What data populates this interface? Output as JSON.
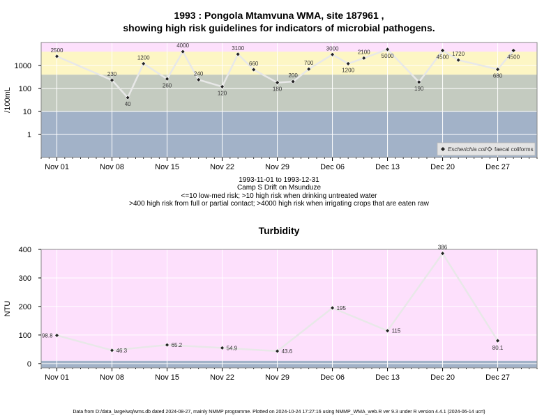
{
  "chart_data": [
    {
      "type": "line",
      "title_line1": "1993 : Pongola Mtamvuna WMA, site 187961 ,",
      "title_line2": "showing high risk guidelines for indicators of microbial pathogens.",
      "ylabel": "/100mL",
      "yscale": "log",
      "ylim": [
        0.1,
        10000
      ],
      "yticks": [
        "1",
        "10",
        "100",
        "1000"
      ],
      "xticks": [
        "Nov 01",
        "Nov 08",
        "Nov 15",
        "Nov 22",
        "Nov 29",
        "Dec 06",
        "Dec 13",
        "Dec 20",
        "Dec 27"
      ],
      "xlim": [
        "1993-10-30",
        "1994-01-01"
      ],
      "grid": true,
      "bands": [
        {
          "from": 0.1,
          "to": 10,
          "color": "#a2b2c8"
        },
        {
          "from": 10,
          "to": 400,
          "color": "#c4cbc0"
        },
        {
          "from": 400,
          "to": 4000,
          "color": "#fdf6c4"
        },
        {
          "from": 4000,
          "to": 10000,
          "color": "#fde0fc"
        }
      ],
      "legend": {
        "position": "bottom-right",
        "entries": [
          "Escherichia coli",
          "faecal coliforms"
        ]
      },
      "series": [
        {
          "name": "Escherichia coli",
          "points": [
            {
              "x": "1993-11-01",
              "y": 2500,
              "label": "2500"
            },
            {
              "x": "1993-11-08",
              "y": 230,
              "label": "230"
            },
            {
              "x": "1993-11-10",
              "y": 40,
              "label": "40"
            },
            {
              "x": "1993-11-12",
              "y": 1200,
              "label": "1200"
            },
            {
              "x": "1993-11-15",
              "y": 260,
              "label": "260"
            },
            {
              "x": "1993-11-17",
              "y": 4000,
              "label": "4000"
            },
            {
              "x": "1993-11-19",
              "y": 240,
              "label": "240"
            },
            {
              "x": "1993-11-22",
              "y": 120,
              "label": "120"
            },
            {
              "x": "1993-11-24",
              "y": 3100,
              "label": "3100"
            },
            {
              "x": "1993-11-26",
              "y": 660,
              "label": "660"
            },
            {
              "x": "1993-11-29",
              "y": 180,
              "label": "180"
            },
            {
              "x": "1993-12-01",
              "y": 200,
              "label": "200"
            },
            {
              "x": "1993-12-03",
              "y": 700,
              "label": "700"
            },
            {
              "x": "1993-12-06",
              "y": 3000,
              "label": "3000"
            },
            {
              "x": "1993-12-08",
              "y": 1200,
              "label": "1200"
            },
            {
              "x": "1993-12-10",
              "y": 2100,
              "label": "2100"
            },
            {
              "x": "1993-12-13",
              "y": 5000,
              "label": "5000"
            },
            {
              "x": "1993-12-17",
              "y": 190,
              "label": "190"
            },
            {
              "x": "1993-12-20",
              "y": 4500,
              "label": "4500"
            },
            {
              "x": "1993-12-22",
              "y": 1720,
              "label": "1720"
            },
            {
              "x": "1993-12-27",
              "y": 680,
              "label": "680"
            },
            {
              "x": "1993-12-29",
              "y": 4500,
              "label": "4500"
            }
          ]
        }
      ]
    },
    {
      "type": "line",
      "title": "Turbidity",
      "ylabel": "NTU",
      "ylim": [
        -15,
        400
      ],
      "yticks": [
        "0",
        "100",
        "200",
        "300",
        "400"
      ],
      "xticks": [
        "Nov 01",
        "Nov 08",
        "Nov 15",
        "Nov 22",
        "Nov 29",
        "Dec 06",
        "Dec 13",
        "Dec 20",
        "Dec 27"
      ],
      "xlim": [
        "1993-10-30",
        "1994-01-01"
      ],
      "grid": true,
      "bands": [
        {
          "from": -15,
          "to": 10,
          "color": "#a2b2c8"
        },
        {
          "from": 10,
          "to": 400,
          "color": "#fde0fc"
        }
      ],
      "series": [
        {
          "name": "",
          "points": [
            {
              "x": "1993-11-01",
              "y": 98.8,
              "label": "98.8"
            },
            {
              "x": "1993-11-08",
              "y": 46.3,
              "label": "46.3"
            },
            {
              "x": "1993-11-15",
              "y": 65.2,
              "label": "65.2"
            },
            {
              "x": "1993-11-22",
              "y": 54.9,
              "label": "54.9"
            },
            {
              "x": "1993-11-29",
              "y": 43.6,
              "label": "43.6"
            },
            {
              "x": "1993-12-06",
              "y": 195,
              "label": "195"
            },
            {
              "x": "1993-12-13",
              "y": 115,
              "label": "115"
            },
            {
              "x": "1993-12-20",
              "y": 386,
              "label": "386"
            },
            {
              "x": "1993-12-27",
              "y": 80.1,
              "label": "80.1"
            }
          ]
        }
      ]
    }
  ],
  "captions": {
    "date_range": "1993-11-01 to 1993-12-31",
    "site_name": "Camp S Drift on Msunduze",
    "guideline1": "<=10 low-med risk; >10 high risk when drinking untreated water",
    "guideline2": ">400 high risk from full or partial contact; >4000 high risk when irrigating crops that are eaten raw"
  },
  "footer": "Data from D:/data_large/wq/wms.db dated 2024-08-27, mainly NMMP programme. Plotted on 2024-10-24 17:27:16 using NMMP_WMA_web.R ver 9.3 under R version 4.4.1 (2024-06-14 ucrt)"
}
